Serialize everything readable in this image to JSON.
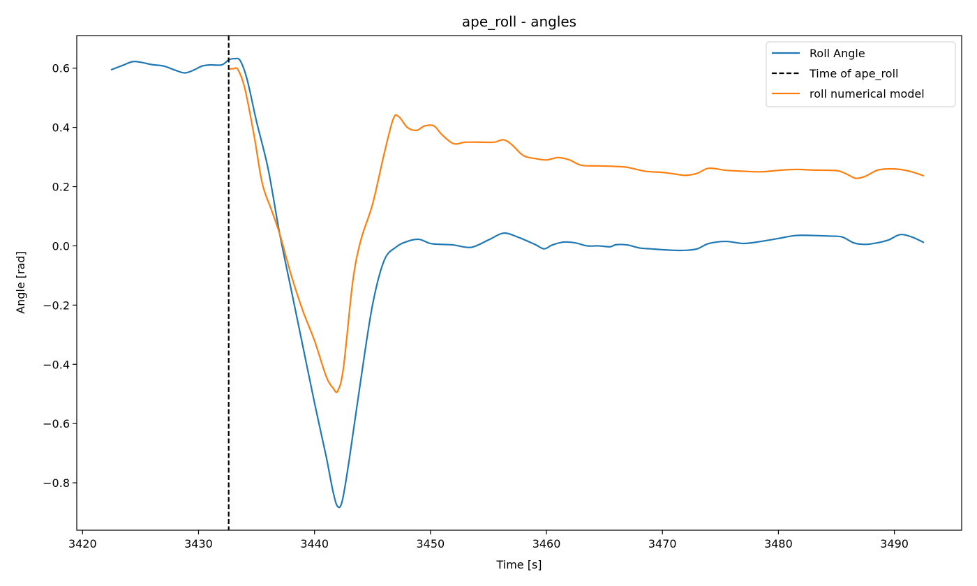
{
  "chart_data": {
    "type": "line",
    "title": "ape_roll - angles",
    "xlabel": "Time [s]",
    "ylabel": "Angle [rad]",
    "xlim": [
      3419.5,
      3495.8
    ],
    "ylim": [
      -0.96,
      0.71
    ],
    "xticks": [
      3420,
      3430,
      3440,
      3450,
      3460,
      3470,
      3480,
      3490
    ],
    "yticks": [
      0.6,
      0.4,
      0.2,
      0.0,
      -0.2,
      -0.4,
      -0.6,
      -0.8
    ],
    "ytick_labels": [
      "0.6",
      "0.4",
      "0.2",
      "0.0",
      "−0.2",
      "−0.4",
      "−0.6",
      "−0.8"
    ],
    "grid": false,
    "legend_position": "top-right",
    "vline": {
      "name": "Time of ape_roll",
      "x": 3432.6,
      "color": "#000000",
      "style": "dashed"
    },
    "series": [
      {
        "name": "Roll Angle",
        "color": "#1f77b4",
        "x": [
          3422.5,
          3423.5,
          3424.3,
          3425.0,
          3426.0,
          3427.0,
          3428.0,
          3428.8,
          3429.5,
          3430.3,
          3431.0,
          3432.0,
          3432.6,
          3433.1,
          3433.6,
          3434.2,
          3435.0,
          3436.0,
          3437.0,
          3438.0,
          3439.0,
          3440.0,
          3441.0,
          3441.6,
          3442.0,
          3442.4,
          3443.0,
          3444.0,
          3445.0,
          3446.0,
          3447.0,
          3448.0,
          3449.0,
          3450.0,
          3451.0,
          3452.0,
          3453.5,
          3455.0,
          3456.3,
          3457.5,
          3459.0,
          3459.8,
          3460.5,
          3461.5,
          3462.5,
          3463.5,
          3464.5,
          3465.5,
          3466.0,
          3467.0,
          3468.0,
          3469.0,
          3470.0,
          3471.0,
          3472.0,
          3473.0,
          3474.0,
          3475.5,
          3477.0,
          3478.5,
          3480.0,
          3481.5,
          3483.0,
          3484.5,
          3485.5,
          3486.5,
          3487.5,
          3488.5,
          3489.5,
          3490.5,
          3491.5,
          3492.5
        ],
        "y": [
          0.595,
          0.61,
          0.622,
          0.62,
          0.612,
          0.607,
          0.593,
          0.584,
          0.592,
          0.607,
          0.611,
          0.611,
          0.628,
          0.632,
          0.625,
          0.56,
          0.42,
          0.26,
          0.04,
          -0.15,
          -0.34,
          -0.53,
          -0.71,
          -0.83,
          -0.88,
          -0.86,
          -0.72,
          -0.45,
          -0.2,
          -0.05,
          -0.005,
          0.015,
          0.022,
          0.008,
          0.005,
          0.003,
          -0.005,
          0.02,
          0.043,
          0.03,
          0.005,
          -0.01,
          0.003,
          0.013,
          0.01,
          0.0,
          0.0,
          -0.003,
          0.004,
          0.003,
          -0.007,
          -0.01,
          -0.013,
          -0.015,
          -0.015,
          -0.01,
          0.008,
          0.015,
          0.008,
          0.015,
          0.025,
          0.035,
          0.035,
          0.033,
          0.03,
          0.01,
          0.005,
          0.01,
          0.02,
          0.038,
          0.03,
          0.012
        ]
      },
      {
        "name": "roll numerical model",
        "color": "#ff7f0e",
        "x": [
          3432.6,
          3433.0,
          3433.4,
          3434.0,
          3434.8,
          3435.5,
          3436.3,
          3437.0,
          3438.0,
          3439.0,
          3440.0,
          3441.0,
          3441.6,
          3442.0,
          3442.5,
          3443.3,
          3444.0,
          3445.0,
          3446.0,
          3446.8,
          3447.3,
          3448.0,
          3448.8,
          3449.5,
          3450.3,
          3451.0,
          3452.0,
          3453.0,
          3454.5,
          3455.5,
          3456.3,
          3457.0,
          3458.0,
          3459.0,
          3460.0,
          3461.0,
          3462.0,
          3463.0,
          3464.5,
          3466.0,
          3467.0,
          3468.5,
          3470.0,
          3471.0,
          3472.0,
          3473.0,
          3474.0,
          3475.5,
          3477.0,
          3478.5,
          3480.0,
          3481.5,
          3483.0,
          3484.5,
          3485.3,
          3486.0,
          3486.7,
          3487.5,
          3488.5,
          3489.5,
          3490.5,
          3491.5,
          3492.5
        ],
        "y": [
          0.597,
          0.598,
          0.595,
          0.53,
          0.37,
          0.21,
          0.12,
          0.04,
          -0.1,
          -0.22,
          -0.32,
          -0.44,
          -0.48,
          -0.49,
          -0.41,
          -0.12,
          0.02,
          0.14,
          0.31,
          0.43,
          0.435,
          0.4,
          0.39,
          0.405,
          0.405,
          0.375,
          0.345,
          0.35,
          0.35,
          0.35,
          0.358,
          0.342,
          0.305,
          0.295,
          0.29,
          0.298,
          0.29,
          0.272,
          0.27,
          0.268,
          0.265,
          0.252,
          0.248,
          0.243,
          0.238,
          0.245,
          0.262,
          0.255,
          0.252,
          0.25,
          0.255,
          0.258,
          0.256,
          0.255,
          0.252,
          0.24,
          0.228,
          0.235,
          0.255,
          0.26,
          0.258,
          0.25,
          0.237
        ]
      }
    ]
  }
}
